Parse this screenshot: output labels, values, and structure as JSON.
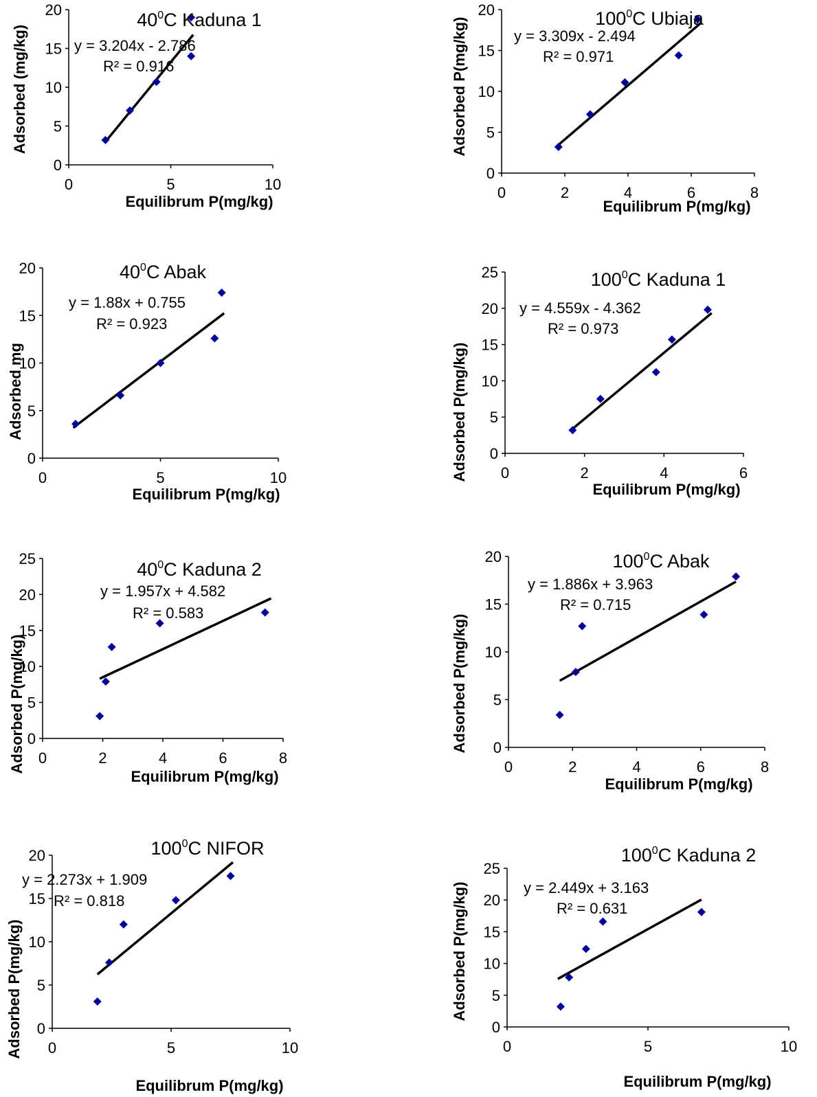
{
  "chart_data": [
    {
      "type": "scatter",
      "title_temp": "40",
      "title_unit": "C",
      "title_site": "Kaduna 1",
      "xlabel": "Equilibrum P(mg/kg)",
      "ylabel": "Adsorbed (mg/kg)",
      "xlim": [
        0,
        10
      ],
      "xticks": [
        0,
        5,
        10
      ],
      "ylim": [
        0,
        20
      ],
      "yticks": [
        0,
        5,
        10,
        15,
        20
      ],
      "points": [
        [
          1.8,
          3.2
        ],
        [
          3.0,
          7.0
        ],
        [
          4.3,
          10.7
        ],
        [
          6.0,
          14.0
        ],
        [
          6.0,
          19.0
        ]
      ],
      "trendline": {
        "slope": 3.204,
        "intercept": -2.786,
        "x_range": [
          1.8,
          6.1
        ]
      },
      "equation": "y = 3.204x - 2.786",
      "r2": "R² = 0.916",
      "marker_color": "#000099"
    },
    {
      "type": "scatter",
      "title_temp": "100",
      "title_unit": "C",
      "title_site": "Ubiaja",
      "xlabel": "Equilibrum P(mg/kg)",
      "ylabel": "Adsorbed P(mg/kg)",
      "xlim": [
        0,
        8
      ],
      "xticks": [
        0,
        2,
        4,
        6,
        8
      ],
      "ylim": [
        0,
        20
      ],
      "yticks": [
        0,
        5,
        10,
        15,
        20
      ],
      "points": [
        [
          1.8,
          3.2
        ],
        [
          2.8,
          7.2
        ],
        [
          3.9,
          11.1
        ],
        [
          5.6,
          14.4
        ],
        [
          6.2,
          18.8
        ]
      ],
      "trendline": {
        "slope": 3.309,
        "intercept": -2.494,
        "x_range": [
          1.8,
          6.3
        ]
      },
      "equation": "y = 3.309x - 2.494",
      "r2": "R² = 0.971",
      "marker_color": "#000099"
    },
    {
      "type": "scatter",
      "title_temp": "40",
      "title_unit": "C",
      "title_site": "Abak",
      "xlabel": "Equilibrum P(mg/kg)",
      "ylabel": "Adsorbed mg",
      "xlim": [
        0,
        10
      ],
      "xticks": [
        0,
        5,
        10
      ],
      "ylim": [
        0,
        20
      ],
      "yticks": [
        0,
        5,
        10,
        15,
        20
      ],
      "points": [
        [
          1.4,
          3.6
        ],
        [
          3.3,
          6.6
        ],
        [
          5.0,
          10.0
        ],
        [
          7.3,
          12.6
        ],
        [
          7.6,
          17.4
        ]
      ],
      "trendline": {
        "slope": 1.88,
        "intercept": 0.755,
        "x_range": [
          1.3,
          7.7
        ]
      },
      "equation": "y = 1.88x + 0.755",
      "r2": "R² = 0.923",
      "marker_color": "#000099"
    },
    {
      "type": "scatter",
      "title_temp": "100",
      "title_unit": "C",
      "title_site": "Kaduna 1",
      "xlabel": "Equilibrum P(mg/kg)",
      "ylabel": "Adsorbed P(mg/kg)",
      "xlim": [
        0,
        6
      ],
      "xticks": [
        0,
        2,
        4,
        6
      ],
      "ylim": [
        0,
        25
      ],
      "yticks": [
        0,
        5,
        10,
        15,
        20,
        25
      ],
      "points": [
        [
          1.7,
          3.2
        ],
        [
          2.4,
          7.5
        ],
        [
          3.8,
          11.2
        ],
        [
          4.2,
          15.7
        ],
        [
          5.1,
          19.8
        ]
      ],
      "trendline": {
        "slope": 4.559,
        "intercept": -4.362,
        "x_range": [
          1.7,
          5.2
        ]
      },
      "equation": "y = 4.559x - 4.362",
      "r2": "R² = 0.973",
      "marker_color": "#000099"
    },
    {
      "type": "scatter",
      "title_temp": "40",
      "title_unit": "C",
      "title_site": "Kaduna 2",
      "xlabel": "Equilibrum P(mg/kg)",
      "ylabel": "Adsorbed P(mg/kg)",
      "xlim": [
        0,
        8
      ],
      "xticks": [
        0,
        2,
        4,
        6,
        8
      ],
      "ylim": [
        0,
        25
      ],
      "yticks": [
        0,
        5,
        10,
        15,
        20,
        25
      ],
      "points": [
        [
          1.9,
          3.1
        ],
        [
          2.1,
          7.9
        ],
        [
          2.3,
          12.7
        ],
        [
          3.9,
          16.0
        ],
        [
          7.4,
          17.5
        ]
      ],
      "trendline": {
        "slope": 1.957,
        "intercept": 4.582,
        "x_range": [
          1.9,
          7.6
        ]
      },
      "equation": "y = 1.957x + 4.582",
      "r2": "R² = 0.583",
      "marker_color": "#000099"
    },
    {
      "type": "scatter",
      "title_temp": "100",
      "title_unit": "C",
      "title_site": "Abak",
      "xlabel": "Equilibrum P(mg/kg)",
      "ylabel": "Adsorbed P(mg/kg)",
      "xlim": [
        0,
        8
      ],
      "xticks": [
        0,
        2,
        4,
        6,
        8
      ],
      "ylim": [
        0,
        20
      ],
      "yticks": [
        0,
        5,
        10,
        15,
        20
      ],
      "points": [
        [
          1.6,
          3.4
        ],
        [
          2.1,
          7.9
        ],
        [
          2.3,
          12.7
        ],
        [
          6.1,
          13.9
        ],
        [
          7.1,
          17.9
        ]
      ],
      "trendline": {
        "slope": 1.886,
        "intercept": 3.963,
        "x_range": [
          1.6,
          7.1
        ]
      },
      "equation": "y = 1.886x + 3.963",
      "r2": "R² = 0.715",
      "marker_color": "#000099"
    },
    {
      "type": "scatter",
      "title_temp": "100",
      "title_unit": "C",
      "title_site": "NIFOR",
      "xlabel": "Equilibrum P(mg/kg)",
      "ylabel": "Adsorbed P(mg/kg)",
      "xlim": [
        0,
        10
      ],
      "xticks": [
        0,
        5,
        10
      ],
      "ylim": [
        0,
        20
      ],
      "yticks": [
        0,
        5,
        10,
        15,
        20
      ],
      "points": [
        [
          1.9,
          3.1
        ],
        [
          2.4,
          7.6
        ],
        [
          3.0,
          12.0
        ],
        [
          5.2,
          14.8
        ],
        [
          7.5,
          17.6
        ]
      ],
      "trendline": {
        "slope": 2.273,
        "intercept": 1.909,
        "x_range": [
          1.9,
          7.6
        ]
      },
      "equation": "y = 2.273x + 1.909",
      "r2": "R² = 0.818",
      "marker_color": "#000099"
    },
    {
      "type": "scatter",
      "title_temp": "100",
      "title_unit": "C",
      "title_site": "Kaduna 2",
      "xlabel": "Equilibrum P(mg/kg)",
      "ylabel": "Adsorbed P(mg/kg)",
      "xlim": [
        0,
        10
      ],
      "xticks": [
        0,
        5,
        10
      ],
      "ylim": [
        0,
        25
      ],
      "yticks": [
        0,
        5,
        10,
        15,
        20,
        25
      ],
      "points": [
        [
          1.9,
          3.2
        ],
        [
          2.2,
          7.8
        ],
        [
          2.8,
          12.3
        ],
        [
          3.4,
          16.6
        ],
        [
          6.9,
          18.1
        ]
      ],
      "trendline": {
        "slope": 2.449,
        "intercept": 3.163,
        "x_range": [
          1.8,
          6.9
        ]
      },
      "equation": "y = 2.449x + 3.163",
      "r2": "R² = 0.631",
      "marker_color": "#000099"
    }
  ]
}
